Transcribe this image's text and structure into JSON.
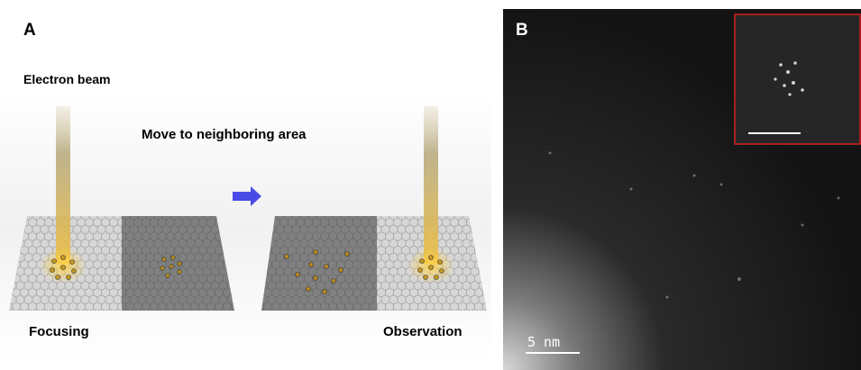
{
  "panel_a": {
    "label": "A",
    "beam_label": "Electron beam",
    "move_label": "Move to neighboring area",
    "left_label": "Focusing",
    "right_label": "Observation"
  },
  "panel_b": {
    "label": "B",
    "scale_bar": "5 nm"
  }
}
